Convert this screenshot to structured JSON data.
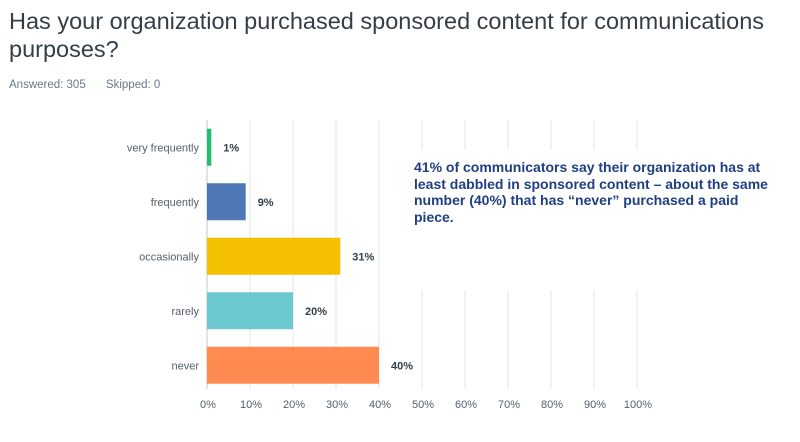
{
  "title": "Has your organization purchased sponsored content for communications purposes?",
  "stats": {
    "answered": "Answered: 305",
    "skipped": "Skipped: 0"
  },
  "annotation": "41% of communicators say their organization has at least dabbled in sponsored content – about the same number (40%) that has “never” purchased a paid piece.",
  "chart_data": {
    "type": "bar",
    "orientation": "horizontal",
    "categories": [
      "very frequently",
      "frequently",
      "occasionally",
      "rarely",
      "never"
    ],
    "values": [
      1,
      9,
      31,
      20,
      40
    ],
    "value_labels": [
      "1%",
      "9%",
      "31%",
      "20%",
      "40%"
    ],
    "colors": [
      "#1fbf6d",
      "#4f78b8",
      "#f5c000",
      "#6cc9cf",
      "#ff8b51"
    ],
    "xticks": [
      "0%",
      "10%",
      "20%",
      "30%",
      "40%",
      "50%",
      "60%",
      "70%",
      "80%",
      "90%",
      "100%"
    ],
    "xlim": [
      0,
      100
    ],
    "grid": "vertical",
    "legend": "none"
  }
}
